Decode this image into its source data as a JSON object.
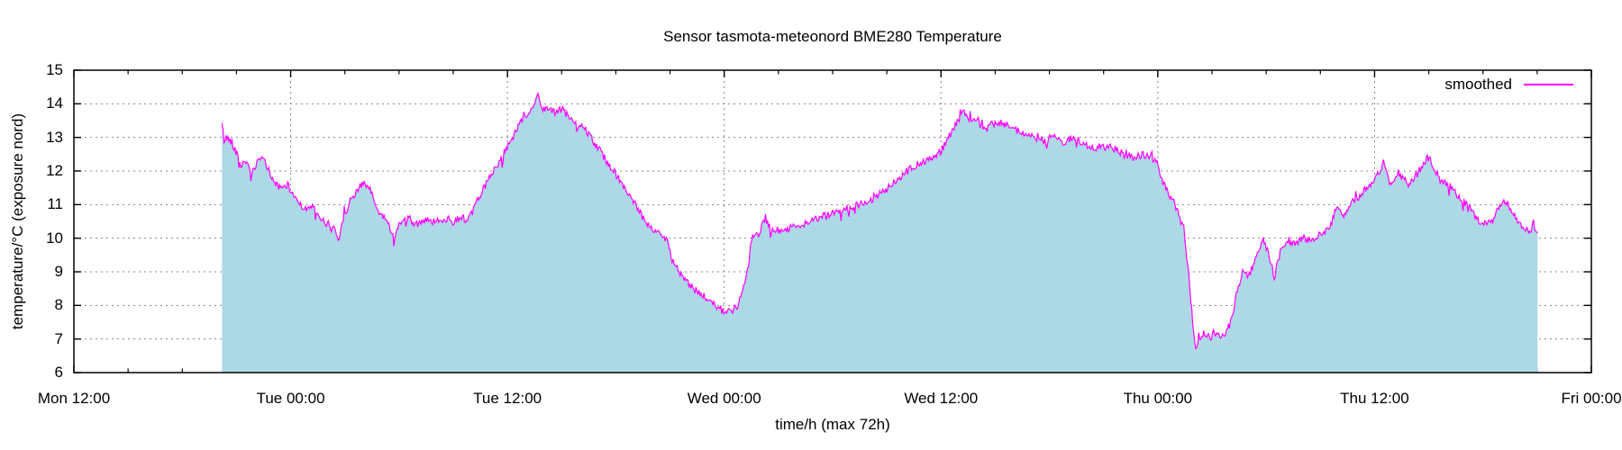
{
  "chart_data": {
    "type": "area",
    "title": "Sensor tasmota-meteonord BME280 Temperature",
    "xlabel": "time/h (max 72h)",
    "ylabel": "temperature/°C (exposure nord)",
    "legend_position": "top-right-inside",
    "grid": true,
    "x_axis": {
      "unit": "hours after Mon 12:00",
      "xlim_hours": [
        0,
        84
      ],
      "tick_hours": [
        0,
        12,
        24,
        36,
        48,
        60,
        72,
        84
      ],
      "tick_labels": [
        "Mon 12:00",
        "Tue 00:00",
        "Tue 12:00",
        "Wed 00:00",
        "Wed 12:00",
        "Thu 00:00",
        "Thu 12:00",
        "Fri 00:00"
      ],
      "minor_tick_interval_hours": 3
    },
    "y_axis": {
      "ylim": [
        6,
        15
      ],
      "ticks": [
        6,
        7,
        8,
        9,
        10,
        11,
        12,
        13,
        14,
        15
      ]
    },
    "colors": {
      "line": "#ff00ff",
      "fill": "#add8e6",
      "grid": "#848484",
      "border": "#000000",
      "background": "#ffffff",
      "text": "#000000"
    },
    "noise": {
      "amplitude": 0.11,
      "spike_chance": 0.07,
      "spike_amplitude": 0.5,
      "seed": 42,
      "sample_step_hours": 0.055
    },
    "series": [
      {
        "name": "smoothed",
        "color": "#ff00ff",
        "filled_to_baseline": true,
        "points_unit": "[hours_after_Mon_12:00, temperature_C]",
        "points": [
          [
            8.2,
            13.4
          ],
          [
            8.3,
            12.9
          ],
          [
            8.45,
            13.0
          ],
          [
            8.7,
            12.9
          ],
          [
            9.0,
            12.55
          ],
          [
            9.25,
            12.15
          ],
          [
            9.5,
            12.35
          ],
          [
            9.8,
            11.85
          ],
          [
            10.1,
            12.2
          ],
          [
            10.45,
            12.4
          ],
          [
            10.8,
            12.0
          ],
          [
            11.1,
            11.65
          ],
          [
            11.5,
            11.45
          ],
          [
            11.8,
            11.6
          ],
          [
            12.0,
            11.4
          ],
          [
            12.5,
            11.05
          ],
          [
            12.9,
            10.8
          ],
          [
            13.2,
            11.0
          ],
          [
            13.6,
            10.55
          ],
          [
            14.0,
            10.45
          ],
          [
            14.4,
            10.3
          ],
          [
            14.65,
            9.95
          ],
          [
            14.9,
            10.6
          ],
          [
            15.3,
            11.1
          ],
          [
            15.8,
            11.55
          ],
          [
            16.1,
            11.6
          ],
          [
            16.5,
            11.35
          ],
          [
            16.8,
            10.8
          ],
          [
            17.2,
            10.6
          ],
          [
            17.5,
            10.35
          ],
          [
            17.75,
            9.9
          ],
          [
            18.0,
            10.45
          ],
          [
            18.5,
            10.55
          ],
          [
            19.0,
            10.4
          ],
          [
            19.5,
            10.6
          ],
          [
            20.0,
            10.45
          ],
          [
            20.5,
            10.6
          ],
          [
            21.0,
            10.5
          ],
          [
            21.5,
            10.65
          ],
          [
            21.8,
            10.5
          ],
          [
            22.1,
            10.8
          ],
          [
            22.4,
            11.2
          ],
          [
            22.8,
            11.6
          ],
          [
            23.2,
            12.0
          ],
          [
            23.6,
            12.3
          ],
          [
            24.0,
            12.7
          ],
          [
            24.4,
            13.1
          ],
          [
            24.8,
            13.5
          ],
          [
            25.2,
            13.75
          ],
          [
            25.55,
            14.0
          ],
          [
            25.7,
            14.3
          ],
          [
            25.85,
            13.9
          ],
          [
            26.3,
            13.85
          ],
          [
            26.7,
            13.7
          ],
          [
            27.0,
            13.85
          ],
          [
            27.4,
            13.6
          ],
          [
            27.8,
            13.35
          ],
          [
            28.2,
            13.35
          ],
          [
            28.6,
            13.0
          ],
          [
            29.0,
            12.7
          ],
          [
            29.5,
            12.3
          ],
          [
            30.0,
            11.9
          ],
          [
            30.5,
            11.5
          ],
          [
            31.0,
            11.1
          ],
          [
            31.5,
            10.6
          ],
          [
            31.9,
            10.35
          ],
          [
            32.4,
            10.15
          ],
          [
            32.8,
            9.95
          ],
          [
            33.1,
            9.4
          ],
          [
            33.4,
            9.1
          ],
          [
            33.9,
            8.7
          ],
          [
            34.4,
            8.45
          ],
          [
            34.9,
            8.25
          ],
          [
            35.4,
            8.05
          ],
          [
            35.9,
            7.85
          ],
          [
            36.3,
            7.8
          ],
          [
            36.7,
            7.95
          ],
          [
            37.0,
            8.3
          ],
          [
            37.3,
            9.2
          ],
          [
            37.55,
            10.05
          ],
          [
            37.9,
            10.1
          ],
          [
            38.3,
            10.65
          ],
          [
            38.6,
            10.2
          ],
          [
            39.1,
            10.25
          ],
          [
            40.0,
            10.35
          ],
          [
            41.0,
            10.55
          ],
          [
            42.0,
            10.75
          ],
          [
            43.0,
            10.9
          ],
          [
            44.0,
            11.1
          ],
          [
            45.0,
            11.45
          ],
          [
            45.8,
            11.85
          ],
          [
            46.4,
            12.1
          ],
          [
            46.9,
            12.25
          ],
          [
            47.5,
            12.4
          ],
          [
            48.0,
            12.6
          ],
          [
            48.4,
            13.0
          ],
          [
            48.9,
            13.45
          ],
          [
            49.25,
            13.8
          ],
          [
            49.6,
            13.55
          ],
          [
            50.0,
            13.5
          ],
          [
            50.4,
            13.2
          ],
          [
            50.9,
            13.45
          ],
          [
            51.4,
            13.45
          ],
          [
            51.9,
            13.3
          ],
          [
            52.4,
            13.15
          ],
          [
            52.9,
            13.05
          ],
          [
            53.4,
            12.95
          ],
          [
            53.9,
            12.9
          ],
          [
            54.3,
            13.0
          ],
          [
            54.8,
            12.85
          ],
          [
            55.3,
            13.0
          ],
          [
            55.8,
            12.85
          ],
          [
            56.3,
            12.7
          ],
          [
            56.8,
            12.65
          ],
          [
            57.3,
            12.75
          ],
          [
            57.8,
            12.6
          ],
          [
            58.3,
            12.45
          ],
          [
            58.7,
            12.35
          ],
          [
            59.1,
            12.5
          ],
          [
            59.5,
            12.45
          ],
          [
            59.9,
            12.3
          ],
          [
            60.2,
            11.8
          ],
          [
            60.5,
            11.4
          ],
          [
            60.9,
            11.1
          ],
          [
            61.2,
            10.6
          ],
          [
            61.45,
            10.3
          ],
          [
            61.6,
            9.5
          ],
          [
            61.8,
            8.4
          ],
          [
            61.95,
            7.3
          ],
          [
            62.1,
            6.8
          ],
          [
            62.3,
            7.0
          ],
          [
            62.6,
            7.2
          ],
          [
            62.9,
            7.05
          ],
          [
            63.2,
            7.25
          ],
          [
            63.5,
            7.05
          ],
          [
            63.8,
            7.2
          ],
          [
            64.1,
            7.6
          ],
          [
            64.35,
            8.3
          ],
          [
            64.7,
            9.0
          ],
          [
            65.0,
            8.85
          ],
          [
            65.3,
            9.2
          ],
          [
            65.6,
            9.6
          ],
          [
            65.85,
            10.0
          ],
          [
            66.1,
            9.6
          ],
          [
            66.45,
            8.85
          ],
          [
            66.8,
            9.65
          ],
          [
            67.2,
            9.9
          ],
          [
            67.6,
            9.8
          ],
          [
            68.0,
            10.0
          ],
          [
            68.5,
            9.95
          ],
          [
            69.0,
            10.1
          ],
          [
            69.5,
            10.3
          ],
          [
            69.9,
            10.9
          ],
          [
            70.3,
            10.7
          ],
          [
            70.7,
            11.1
          ],
          [
            71.1,
            11.2
          ],
          [
            71.55,
            11.5
          ],
          [
            72.05,
            11.75
          ],
          [
            72.5,
            12.25
          ],
          [
            72.8,
            11.65
          ],
          [
            73.2,
            11.8
          ],
          [
            73.5,
            11.85
          ],
          [
            73.9,
            11.6
          ],
          [
            74.3,
            11.9
          ],
          [
            74.7,
            12.2
          ],
          [
            74.95,
            12.45
          ],
          [
            75.3,
            12.1
          ],
          [
            75.65,
            11.7
          ],
          [
            76.15,
            11.55
          ],
          [
            76.65,
            11.25
          ],
          [
            77.15,
            11.0
          ],
          [
            77.65,
            10.6
          ],
          [
            78.05,
            10.4
          ],
          [
            78.55,
            10.5
          ],
          [
            78.9,
            10.95
          ],
          [
            79.25,
            11.1
          ],
          [
            79.65,
            10.75
          ],
          [
            80.15,
            10.4
          ],
          [
            80.55,
            10.15
          ],
          [
            80.8,
            10.45
          ],
          [
            81.05,
            10.1
          ]
        ]
      }
    ]
  }
}
